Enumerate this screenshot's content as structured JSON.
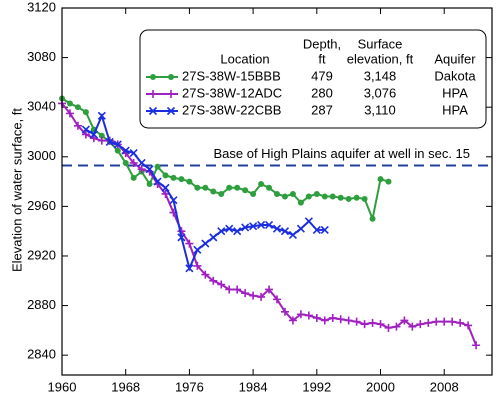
{
  "chart_data": {
    "type": "line",
    "y_label": "Elevation of water surface, ft",
    "xlim": [
      1960,
      2014
    ],
    "ylim": [
      2824,
      3120
    ],
    "xticks": [
      1960,
      1968,
      1976,
      1984,
      1992,
      2000,
      2008
    ],
    "yticks": [
      2840,
      2880,
      2920,
      2960,
      3000,
      3040,
      3080,
      3120
    ],
    "reference_line": {
      "value": 2993,
      "label": "Base of High Plains aquifer at well in sec. 15",
      "color": "#1f3f9f"
    },
    "legend_columns": [
      [
        "Location"
      ],
      [
        "Depth,",
        "ft"
      ],
      [
        "Surface",
        "elevation, ft"
      ],
      [
        "Aquifer"
      ]
    ],
    "series": [
      {
        "name": "27S-38W-15BBB",
        "color": "#2e9e3e",
        "marker": "circle",
        "depth": 479,
        "surface_elevation": "3,148",
        "aquifer": "Dakota",
        "x": [
          1960,
          1961,
          1962,
          1963,
          1964,
          1965,
          1966,
          1967,
          1968,
          1969,
          1970,
          1971,
          1972,
          1973,
          1974,
          1975,
          1976,
          1977,
          1978,
          1979,
          1980,
          1981,
          1982,
          1983,
          1984,
          1985,
          1986,
          1987,
          1988,
          1989,
          1990,
          1991,
          1992,
          1993,
          1994,
          1995,
          1996,
          1997,
          1998,
          1999,
          2000,
          2001
        ],
        "values": [
          3047,
          3043,
          3040,
          3036,
          3022,
          3017,
          3012,
          3005,
          2995,
          2983,
          2988,
          2978,
          2992,
          2985,
          2983,
          2982,
          2980,
          2975,
          2975,
          2972,
          2970,
          2975,
          2975,
          2973,
          2970,
          2978,
          2975,
          2970,
          2968,
          2970,
          2963,
          2968,
          2970,
          2968,
          2968,
          2967,
          2966,
          2967,
          2966,
          2950,
          2982,
          2980
        ]
      },
      {
        "name": "27S-38W-12ADC",
        "color": "#a020c0",
        "marker": "plus",
        "depth": 280,
        "surface_elevation": "3,076",
        "aquifer": "HPA",
        "x": [
          1960,
          1961,
          1962,
          1963,
          1964,
          1965,
          1966,
          1967,
          1968,
          1969,
          1970,
          1971,
          1972,
          1973,
          1974,
          1975,
          1976,
          1977,
          1978,
          1979,
          1980,
          1981,
          1982,
          1983,
          1984,
          1985,
          1986,
          1987,
          1988,
          1989,
          1990,
          1991,
          1992,
          1993,
          1994,
          1995,
          1996,
          1997,
          1998,
          1999,
          2000,
          2001,
          2002,
          2003,
          2004,
          2005,
          2006,
          2007,
          2008,
          2009,
          2010,
          2011,
          2012
        ],
        "values": [
          3043,
          3035,
          3025,
          3018,
          3015,
          3013,
          3013,
          3010,
          3003,
          2995,
          2990,
          2988,
          2978,
          2970,
          2955,
          2940,
          2930,
          2912,
          2905,
          2900,
          2897,
          2893,
          2893,
          2890,
          2888,
          2887,
          2893,
          2885,
          2875,
          2868,
          2873,
          2872,
          2870,
          2868,
          2870,
          2869,
          2868,
          2867,
          2865,
          2866,
          2865,
          2862,
          2863,
          2868,
          2863,
          2865,
          2866,
          2867,
          2867,
          2867,
          2866,
          2864,
          2848
        ]
      },
      {
        "name": "27S-38W-22CBB",
        "color": "#1a2ee0",
        "marker": "x",
        "depth": 287,
        "surface_elevation": "3,110",
        "aquifer": "HPA",
        "x": [
          1963,
          1964,
          1965,
          1966,
          1967,
          1968,
          1969,
          1970,
          1971,
          1972,
          1973,
          1974,
          1975,
          1976,
          1977,
          1978,
          1979,
          1980,
          1981,
          1982,
          1983,
          1984,
          1985,
          1986,
          1987,
          1988,
          1989,
          1990,
          1991,
          1992,
          1993
        ],
        "values": [
          3022,
          3018,
          3033,
          3012,
          3010,
          3005,
          3003,
          2995,
          2990,
          2980,
          2975,
          2965,
          2935,
          2910,
          2925,
          2930,
          2935,
          2940,
          2942,
          2940,
          2943,
          2944,
          2945,
          2945,
          2942,
          2940,
          2937,
          2942,
          2948,
          2941,
          2941
        ]
      }
    ]
  }
}
